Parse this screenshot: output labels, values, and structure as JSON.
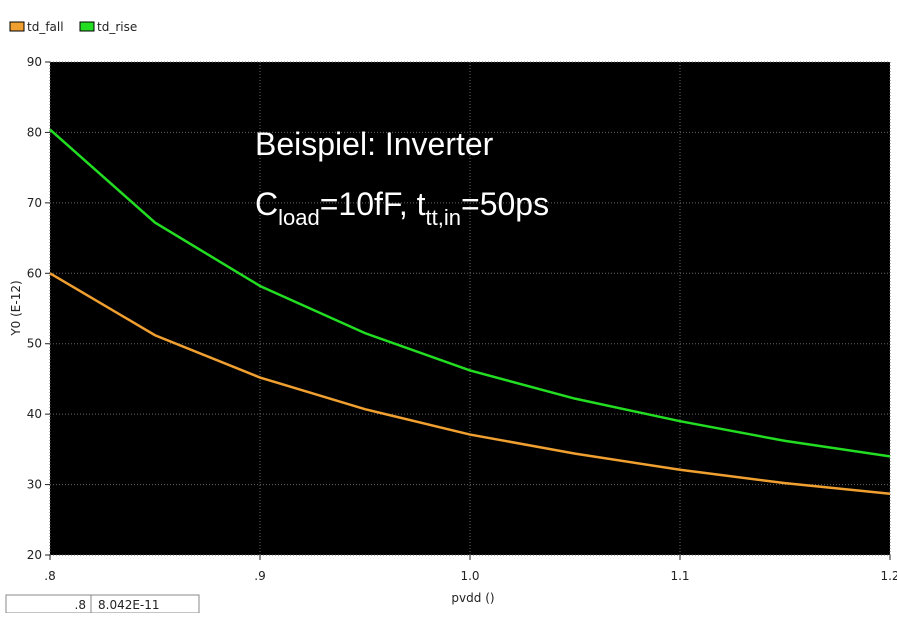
{
  "chart_data": {
    "type": "line",
    "x": [
      0.8,
      0.85,
      0.9,
      0.95,
      1.0,
      1.05,
      1.1,
      1.15,
      1.2
    ],
    "series": [
      {
        "name": "td_fall",
        "color": "#f0a030",
        "values": [
          60,
          51.2,
          45.2,
          40.7,
          37.1,
          34.4,
          32.1,
          30.2,
          28.7
        ]
      },
      {
        "name": "td_rise",
        "color": "#22dd22",
        "values": [
          80.4,
          67.2,
          58.2,
          51.5,
          46.2,
          42.2,
          39,
          36.2,
          34
        ]
      }
    ],
    "xlim": [
      0.8,
      1.2
    ],
    "xticks": [
      {
        "value": 0.8,
        "label": ".8"
      },
      {
        "value": 0.9,
        "label": ".9"
      },
      {
        "value": 1.0,
        "label": "1.0"
      },
      1.1,
      1.2
    ],
    "ylim": [
      20,
      90
    ],
    "yticks": [
      20,
      30,
      40,
      50,
      60,
      70,
      80,
      90
    ],
    "xlabel": "pvdd ()",
    "ylabel": "Y0 (E-12)",
    "grid": true,
    "annotations": {
      "line1": "Beispiel: Inverter",
      "line2": [
        "C",
        "load",
        "=10fF, t",
        "tt,in",
        "=50ps"
      ]
    },
    "status": {
      "x": ".8",
      "y": "8.042E-11"
    }
  }
}
